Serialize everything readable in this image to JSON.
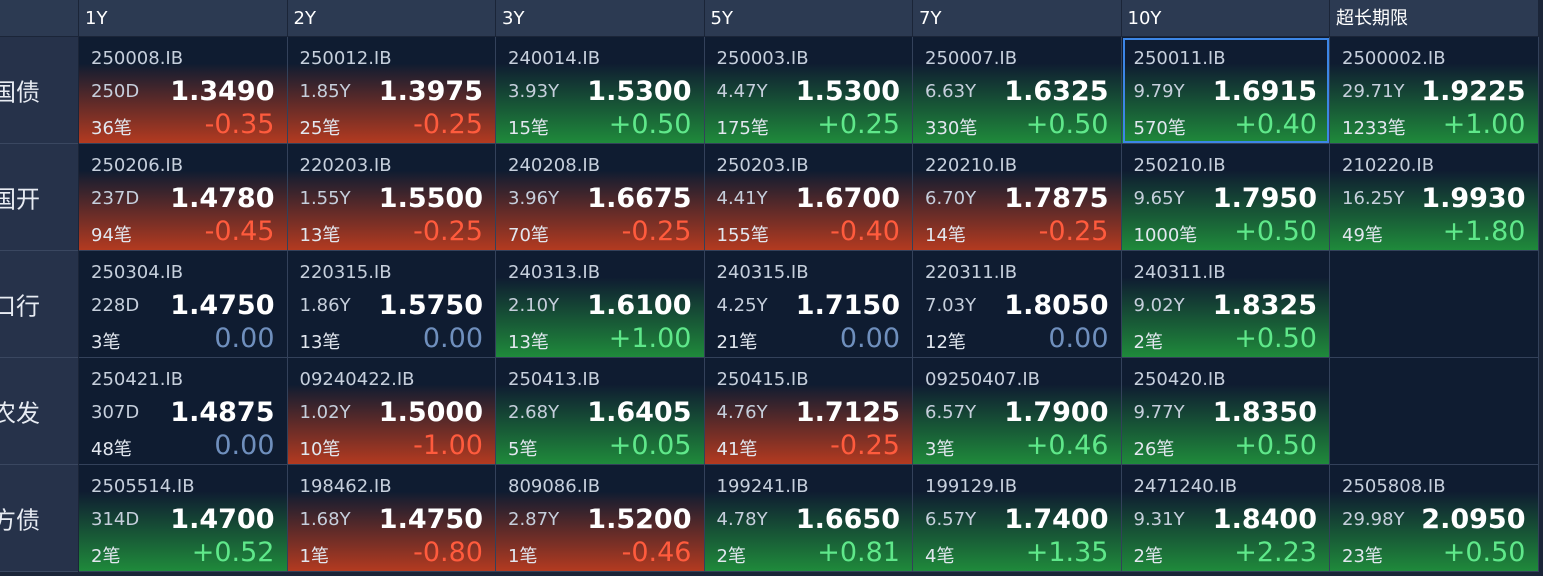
{
  "header": {
    "columns": [
      "1Y",
      "2Y",
      "3Y",
      "5Y",
      "7Y",
      "10Y",
      "超长期限"
    ]
  },
  "rows": [
    {
      "label": "国债",
      "cells": [
        {
          "code": "250008.IB",
          "term": "250D",
          "yield": "1.3490",
          "count": "36笔",
          "change": "-0.35"
        },
        {
          "code": "250012.IB",
          "term": "1.85Y",
          "yield": "1.3975",
          "count": "25笔",
          "change": "-0.25"
        },
        {
          "code": "240014.IB",
          "term": "3.93Y",
          "yield": "1.5300",
          "count": "15笔",
          "change": "+0.50"
        },
        {
          "code": "250003.IB",
          "term": "4.47Y",
          "yield": "1.5300",
          "count": "175笔",
          "change": "+0.25"
        },
        {
          "code": "250007.IB",
          "term": "6.63Y",
          "yield": "1.6325",
          "count": "330笔",
          "change": "+0.50"
        },
        {
          "code": "250011.IB",
          "term": "9.79Y",
          "yield": "1.6915",
          "count": "570笔",
          "change": "+0.40"
        },
        {
          "code": "2500002.IB",
          "term": "29.71Y",
          "yield": "1.9225",
          "count": "1233笔",
          "change": "+1.00"
        }
      ]
    },
    {
      "label": "国开",
      "cells": [
        {
          "code": "250206.IB",
          "term": "237D",
          "yield": "1.4780",
          "count": "94笔",
          "change": "-0.45"
        },
        {
          "code": "220203.IB",
          "term": "1.55Y",
          "yield": "1.5500",
          "count": "13笔",
          "change": "-0.25"
        },
        {
          "code": "240208.IB",
          "term": "3.96Y",
          "yield": "1.6675",
          "count": "70笔",
          "change": "-0.25"
        },
        {
          "code": "250203.IB",
          "term": "4.41Y",
          "yield": "1.6700",
          "count": "155笔",
          "change": "-0.40"
        },
        {
          "code": "220210.IB",
          "term": "6.70Y",
          "yield": "1.7875",
          "count": "14笔",
          "change": "-0.25"
        },
        {
          "code": "250210.IB",
          "term": "9.65Y",
          "yield": "1.7950",
          "count": "1000笔",
          "change": "+0.50"
        },
        {
          "code": "210220.IB",
          "term": "16.25Y",
          "yield": "1.9930",
          "count": "49笔",
          "change": "+1.80"
        }
      ]
    },
    {
      "label": "口行",
      "cells": [
        {
          "code": "250304.IB",
          "term": "228D",
          "yield": "1.4750",
          "count": "3笔",
          "change": "0.00"
        },
        {
          "code": "220315.IB",
          "term": "1.86Y",
          "yield": "1.5750",
          "count": "13笔",
          "change": "0.00"
        },
        {
          "code": "240313.IB",
          "term": "2.10Y",
          "yield": "1.6100",
          "count": "13笔",
          "change": "+1.00"
        },
        {
          "code": "240315.IB",
          "term": "4.25Y",
          "yield": "1.7150",
          "count": "21笔",
          "change": "0.00"
        },
        {
          "code": "220311.IB",
          "term": "7.03Y",
          "yield": "1.8050",
          "count": "12笔",
          "change": "0.00"
        },
        {
          "code": "240311.IB",
          "term": "9.02Y",
          "yield": "1.8325",
          "count": "2笔",
          "change": "+0.50"
        },
        null
      ]
    },
    {
      "label": "农发",
      "cells": [
        {
          "code": "250421.IB",
          "term": "307D",
          "yield": "1.4875",
          "count": "48笔",
          "change": "0.00"
        },
        {
          "code": "09240422.IB",
          "term": "1.02Y",
          "yield": "1.5000",
          "count": "10笔",
          "change": "-1.00"
        },
        {
          "code": "250413.IB",
          "term": "2.68Y",
          "yield": "1.6405",
          "count": "5笔",
          "change": "+0.05"
        },
        {
          "code": "250415.IB",
          "term": "4.76Y",
          "yield": "1.7125",
          "count": "41笔",
          "change": "-0.25"
        },
        {
          "code": "09250407.IB",
          "term": "6.57Y",
          "yield": "1.7900",
          "count": "3笔",
          "change": "+0.46"
        },
        {
          "code": "250420.IB",
          "term": "9.77Y",
          "yield": "1.8350",
          "count": "26笔",
          "change": "+0.50"
        },
        null
      ]
    },
    {
      "label": "方债",
      "cells": [
        {
          "code": "2505514.IB",
          "term": "314D",
          "yield": "1.4700",
          "count": "2笔",
          "change": "+0.52"
        },
        {
          "code": "198462.IB",
          "term": "1.68Y",
          "yield": "1.4750",
          "count": "1笔",
          "change": "-0.80"
        },
        {
          "code": "809086.IB",
          "term": "2.87Y",
          "yield": "1.5200",
          "count": "1笔",
          "change": "-0.46"
        },
        {
          "code": "199241.IB",
          "term": "4.78Y",
          "yield": "1.6650",
          "count": "2笔",
          "change": "+0.81"
        },
        {
          "code": "199129.IB",
          "term": "6.57Y",
          "yield": "1.7400",
          "count": "4笔",
          "change": "+1.35"
        },
        {
          "code": "2471240.IB",
          "term": "9.31Y",
          "yield": "1.8400",
          "count": "2笔",
          "change": "+2.23"
        },
        {
          "code": "2505808.IB",
          "term": "29.98Y",
          "yield": "2.0950",
          "count": "23笔",
          "change": "+0.50"
        }
      ]
    }
  ]
}
